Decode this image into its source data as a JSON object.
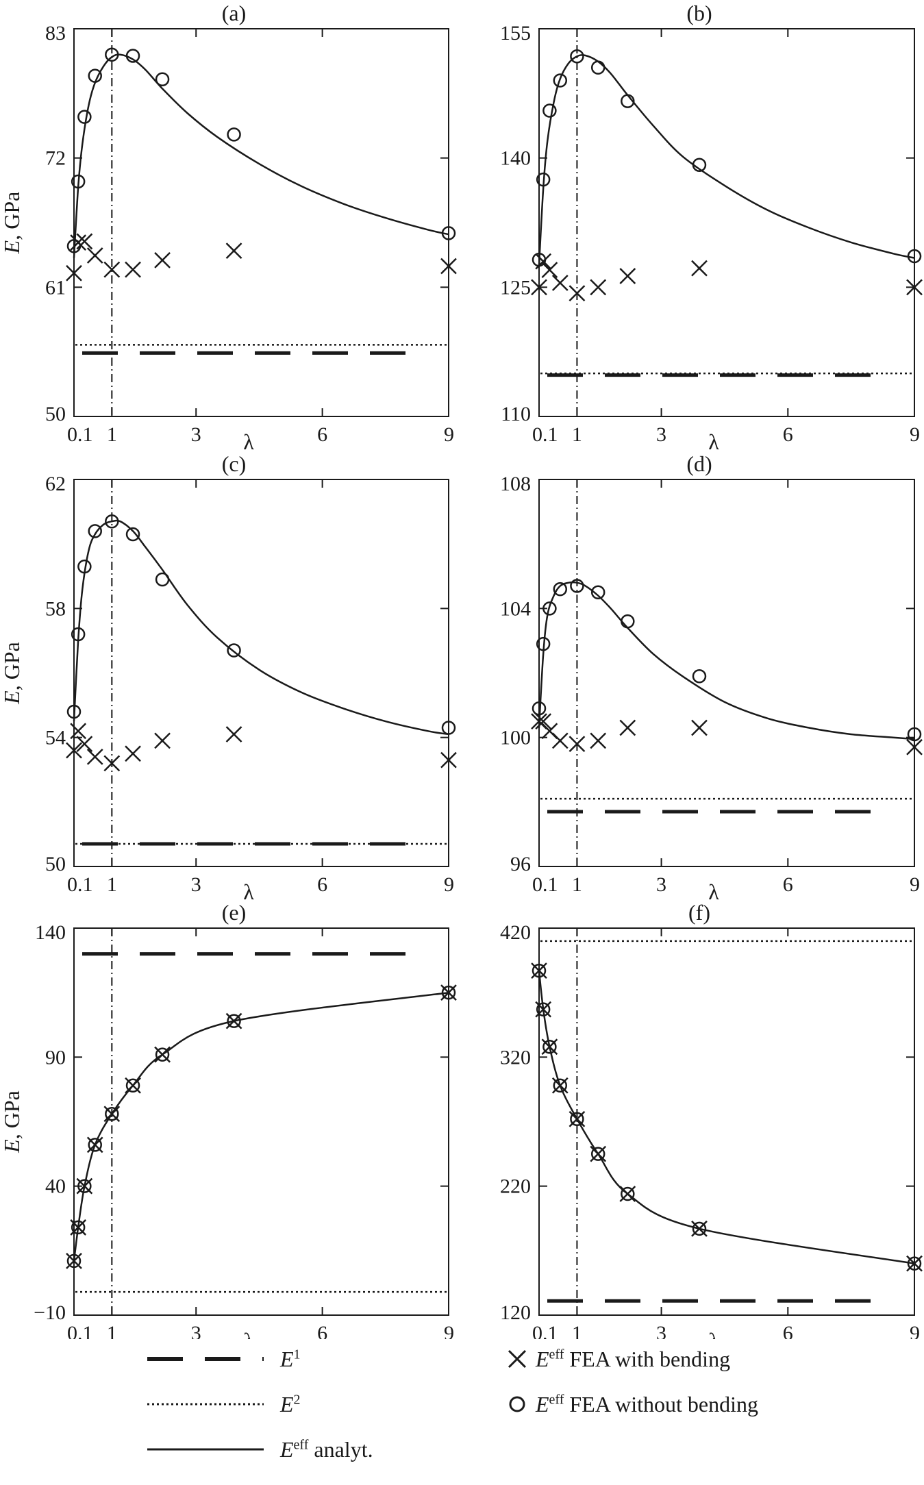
{
  "chart_data": [
    {
      "type": "line",
      "title": "(a)",
      "ylabel": "E, GPa",
      "xlabel": "λ",
      "xlim": [
        0.1,
        9
      ],
      "ylim": [
        50,
        83
      ],
      "xticks": [
        0.1,
        1,
        3,
        6,
        9
      ],
      "xtick_labels": [
        "0.1",
        "1",
        "3",
        "6",
        "9"
      ],
      "yticks": [
        50,
        61,
        72,
        83
      ],
      "ytick_labels": [
        "50",
        "61",
        "72",
        "83"
      ],
      "E1": 55.4,
      "E2": 56.1,
      "vline_x": 1,
      "analytic": {
        "x": [
          0.1,
          0.2,
          0.3,
          0.45,
          0.6,
          0.8,
          1.0,
          1.2,
          1.5,
          1.8,
          2.2,
          2.8,
          3.5,
          4.5,
          5.5,
          6.5,
          7.5,
          8.5,
          9.0
        ],
        "y": [
          63.5,
          69.5,
          73.2,
          76.5,
          78.4,
          79.8,
          80.6,
          80.8,
          80.4,
          79.5,
          77.9,
          75.8,
          73.8,
          71.5,
          69.6,
          68.1,
          66.9,
          65.9,
          65.5
        ]
      },
      "fea_without_bending": {
        "x": [
          0.1,
          0.2,
          0.35,
          0.6,
          1.0,
          1.5,
          2.2,
          3.9,
          9.0
        ],
        "y": [
          64.5,
          70.0,
          75.5,
          79.0,
          80.8,
          80.7,
          78.7,
          74.0,
          65.6
        ]
      },
      "fea_with_bending": {
        "x": [
          0.1,
          0.2,
          0.35,
          0.6,
          1.0,
          1.5,
          2.2,
          3.9,
          9.0
        ],
        "y": [
          62.2,
          64.8,
          64.9,
          63.7,
          62.5,
          62.5,
          63.3,
          64.1,
          62.8
        ]
      }
    },
    {
      "type": "line",
      "title": "(b)",
      "ylabel": "",
      "xlabel": "λ",
      "xlim": [
        0.1,
        9
      ],
      "ylim": [
        110,
        155
      ],
      "xticks": [
        0.1,
        1,
        3,
        6,
        9
      ],
      "xtick_labels": [
        "0.1",
        "1",
        "3",
        "6",
        "9"
      ],
      "yticks": [
        110,
        125,
        140,
        155
      ],
      "ytick_labels": [
        "110",
        "125",
        "140",
        "155"
      ],
      "E1": 114.8,
      "E2": 115.0,
      "vline_x": 1,
      "analytic": {
        "x": [
          0.1,
          0.2,
          0.3,
          0.45,
          0.6,
          0.8,
          1.0,
          1.2,
          1.5,
          1.8,
          2.2,
          2.8,
          3.5,
          4.5,
          5.5,
          6.5,
          7.5,
          8.5,
          9.0
        ],
        "y": [
          127.5,
          136.5,
          142.0,
          146.5,
          149.2,
          151.0,
          151.8,
          151.9,
          151.2,
          149.8,
          147.3,
          143.8,
          140.2,
          136.8,
          134.0,
          131.9,
          130.2,
          128.9,
          128.4
        ]
      },
      "fea_without_bending": {
        "x": [
          0.1,
          0.2,
          0.35,
          0.6,
          1.0,
          1.5,
          2.2,
          3.9,
          9.0
        ],
        "y": [
          128.2,
          137.5,
          145.5,
          149.0,
          151.8,
          150.5,
          146.6,
          139.2,
          128.6
        ]
      },
      "fea_with_bending": {
        "x": [
          0.1,
          0.2,
          0.35,
          0.6,
          1.0,
          1.5,
          2.2,
          3.9,
          9.0
        ],
        "y": [
          125.0,
          128.0,
          127.0,
          125.5,
          124.3,
          125.0,
          126.3,
          127.2,
          125.0
        ]
      }
    },
    {
      "type": "line",
      "title": "(c)",
      "ylabel": "E, GPa",
      "xlabel": "λ",
      "xlim": [
        0.1,
        9
      ],
      "ylim": [
        50,
        62
      ],
      "xticks": [
        0.1,
        1,
        3,
        6,
        9
      ],
      "xtick_labels": [
        "0.1",
        "1",
        "3",
        "6",
        "9"
      ],
      "yticks": [
        50,
        54,
        58,
        62
      ],
      "ytick_labels": [
        "50",
        "54",
        "58",
        "62"
      ],
      "E1": 50.7,
      "E2": 50.7,
      "vline_x": 1,
      "analytic": {
        "x": [
          0.1,
          0.2,
          0.3,
          0.45,
          0.6,
          0.8,
          1.0,
          1.2,
          1.5,
          1.8,
          2.2,
          2.8,
          3.5,
          4.5,
          5.5,
          6.5,
          7.5,
          8.5,
          9.0
        ],
        "y": [
          54.5,
          57.0,
          58.6,
          59.8,
          60.3,
          60.6,
          60.7,
          60.7,
          60.4,
          59.9,
          59.2,
          58.1,
          57.1,
          56.1,
          55.4,
          54.9,
          54.5,
          54.2,
          54.1
        ]
      },
      "fea_without_bending": {
        "x": [
          0.1,
          0.2,
          0.35,
          0.6,
          1.0,
          1.5,
          2.2,
          3.9,
          9.0
        ],
        "y": [
          54.8,
          57.2,
          59.3,
          60.4,
          60.7,
          60.3,
          58.9,
          56.7,
          54.3
        ]
      },
      "fea_with_bending": {
        "x": [
          0.1,
          0.2,
          0.35,
          0.6,
          1.0,
          1.5,
          2.2,
          3.9,
          9.0
        ],
        "y": [
          53.6,
          54.2,
          53.8,
          53.4,
          53.2,
          53.5,
          53.9,
          54.1,
          53.3
        ]
      }
    },
    {
      "type": "line",
      "title": "(d)",
      "ylabel": "",
      "xlabel": "λ",
      "xlim": [
        0.1,
        9
      ],
      "ylim": [
        96,
        108
      ],
      "xticks": [
        0.1,
        1,
        3,
        6,
        9
      ],
      "xtick_labels": [
        "0.1",
        "1",
        "3",
        "6",
        "9"
      ],
      "yticks": [
        96,
        100,
        104,
        108
      ],
      "ytick_labels": [
        "96",
        "100",
        "104",
        "108"
      ],
      "E1": 97.7,
      "E2": 98.1,
      "vline_x": 1,
      "analytic": {
        "x": [
          0.1,
          0.2,
          0.3,
          0.45,
          0.6,
          0.8,
          1.0,
          1.2,
          1.5,
          1.8,
          2.2,
          2.8,
          3.5,
          4.5,
          5.5,
          6.5,
          7.5,
          8.5,
          9.0
        ],
        "y": [
          100.3,
          102.6,
          103.8,
          104.4,
          104.7,
          104.8,
          104.8,
          104.7,
          104.4,
          104.0,
          103.4,
          102.6,
          101.9,
          101.1,
          100.6,
          100.3,
          100.1,
          100.0,
          99.95
        ]
      },
      "fea_without_bending": {
        "x": [
          0.1,
          0.2,
          0.35,
          0.6,
          1.0,
          1.5,
          2.2,
          3.9,
          9.0
        ],
        "y": [
          100.9,
          102.9,
          104.0,
          104.6,
          104.7,
          104.5,
          103.6,
          101.9,
          100.1
        ]
      },
      "fea_with_bending": {
        "x": [
          0.1,
          0.2,
          0.35,
          0.6,
          1.0,
          1.5,
          2.2,
          3.9,
          9.0
        ],
        "y": [
          100.5,
          100.5,
          100.2,
          99.9,
          99.8,
          99.9,
          100.3,
          100.3,
          99.7
        ]
      }
    },
    {
      "type": "line",
      "title": "(e)",
      "ylabel": "E, GPa",
      "xlabel": "λ",
      "xlim": [
        0.1,
        9
      ],
      "ylim": [
        -10,
        140
      ],
      "xticks": [
        0.1,
        1,
        3,
        6,
        9
      ],
      "xtick_labels": [
        "0.1",
        "1",
        "3",
        "6",
        "9"
      ],
      "yticks": [
        -10,
        40,
        90,
        140
      ],
      "ytick_labels": [
        "−10",
        "40",
        "90",
        "140"
      ],
      "E1": 130,
      "E2": -1,
      "vline_x": 1,
      "analytic": {
        "x": [
          0.1,
          0.2,
          0.35,
          0.6,
          1.0,
          1.5,
          2.2,
          3.9,
          9.0
        ],
        "y": [
          11,
          24,
          40,
          56,
          68,
          79,
          91,
          104,
          115
        ]
      },
      "fea_without_bending": {
        "x": [
          0.1,
          0.2,
          0.35,
          0.6,
          1.0,
          1.5,
          2.2,
          3.9,
          9.0
        ],
        "y": [
          11,
          24,
          40,
          56,
          68,
          79,
          91,
          104,
          115
        ]
      },
      "fea_with_bending": {
        "x": [
          0.1,
          0.2,
          0.35,
          0.6,
          1.0,
          1.5,
          2.2,
          3.9,
          9.0
        ],
        "y": [
          11,
          24,
          40,
          56,
          68,
          79,
          91,
          104,
          115
        ]
      }
    },
    {
      "type": "line",
      "title": "(f)",
      "ylabel": "",
      "xlabel": "λ",
      "xlim": [
        0.1,
        9
      ],
      "ylim": [
        120,
        420
      ],
      "xticks": [
        0.1,
        1,
        3,
        6,
        9
      ],
      "xtick_labels": [
        "0.1",
        "1",
        "3",
        "6",
        "9"
      ],
      "yticks": [
        120,
        220,
        320,
        420
      ],
      "ytick_labels": [
        "120",
        "220",
        "320",
        "420"
      ],
      "E1": 131,
      "E2": 410,
      "vline_x": 1,
      "analytic": {
        "x": [
          0.1,
          0.2,
          0.35,
          0.6,
          1.0,
          1.5,
          2.2,
          3.9,
          9.0
        ],
        "y": [
          387,
          357,
          328,
          298,
          272,
          245,
          214,
          187,
          160
        ]
      },
      "fea_without_bending": {
        "x": [
          0.1,
          0.2,
          0.35,
          0.6,
          1.0,
          1.5,
          2.2,
          3.9,
          9.0
        ],
        "y": [
          387,
          357,
          328,
          298,
          272,
          245,
          214,
          187,
          160
        ]
      },
      "fea_with_bending": {
        "x": [
          0.1,
          0.2,
          0.35,
          0.6,
          1.0,
          1.5,
          2.2,
          3.9,
          9.0
        ],
        "y": [
          387,
          357,
          328,
          298,
          272,
          245,
          214,
          187,
          160
        ]
      }
    }
  ],
  "legend": {
    "e1": {
      "main": "E",
      "sup": "1",
      "rest": ""
    },
    "e2": {
      "main": "E",
      "sup": "2",
      "rest": ""
    },
    "analytic": {
      "main": "E",
      "sup": "eff",
      "rest": " analyt."
    },
    "fea_with": {
      "main": "E",
      "sup": "eff",
      "rest": " FEA with bending"
    },
    "fea_without": {
      "main": "E",
      "sup": "eff",
      "rest": " FEA without bending"
    }
  },
  "colors": {
    "line": "#1a1a1a",
    "background": "#ffffff"
  }
}
